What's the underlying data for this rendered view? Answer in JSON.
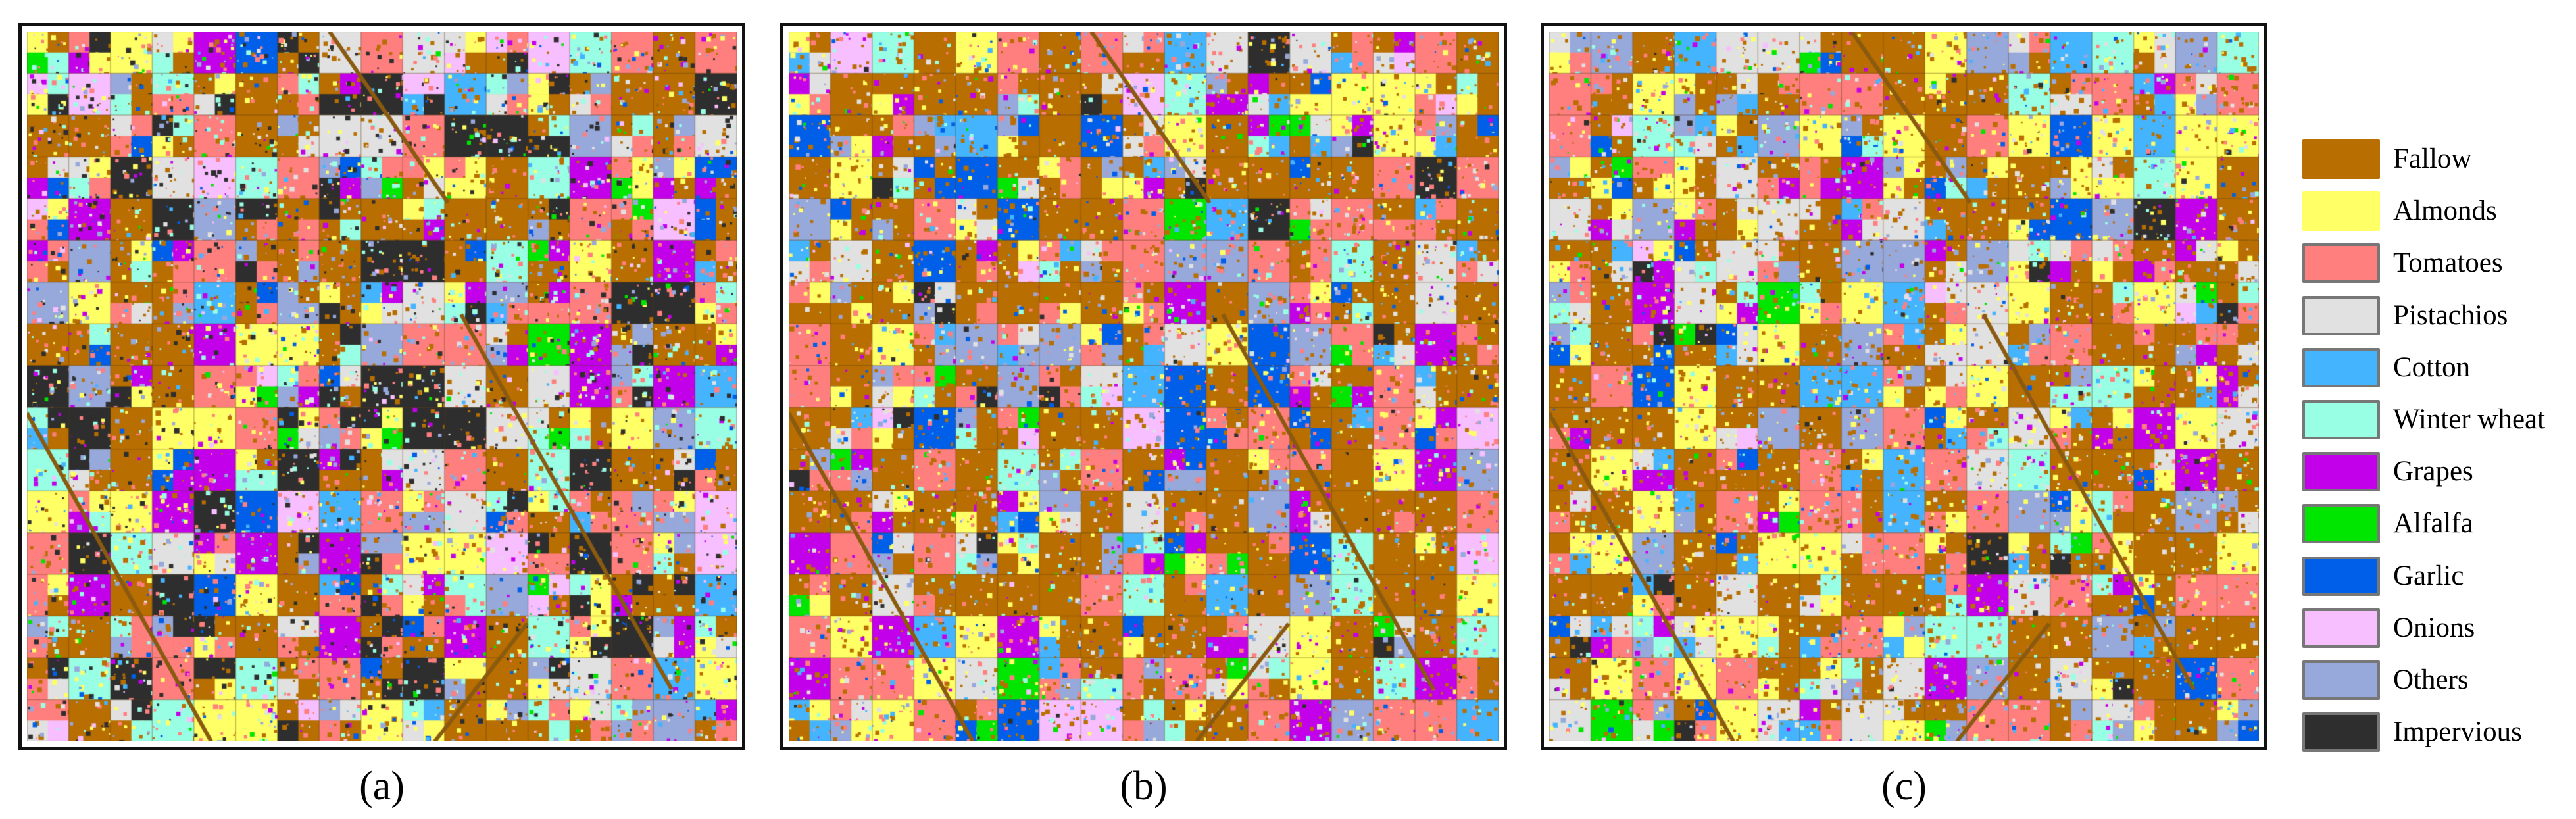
{
  "figure": {
    "panels": [
      {
        "id": "a",
        "caption": "(a)",
        "weights": {
          "Fallow": 22,
          "Almonds": 9,
          "Tomatoes": 15,
          "Pistachios": 6,
          "Cotton": 3,
          "Winter wheat": 8,
          "Grapes": 6,
          "Alfalfa": 2,
          "Garlic": 4,
          "Onions": 3,
          "Others": 8,
          "Impervious": 14
        },
        "seed": 11
      },
      {
        "id": "b",
        "caption": "(b)",
        "weights": {
          "Fallow": 34,
          "Almonds": 10,
          "Tomatoes": 15,
          "Pistachios": 8,
          "Cotton": 4,
          "Winter wheat": 5,
          "Grapes": 6,
          "Alfalfa": 2,
          "Garlic": 5,
          "Onions": 2,
          "Others": 7,
          "Impervious": 2
        },
        "seed": 23
      },
      {
        "id": "c",
        "caption": "(c)",
        "weights": {
          "Fallow": 33,
          "Almonds": 11,
          "Tomatoes": 14,
          "Pistachios": 9,
          "Cotton": 6,
          "Winter wheat": 6,
          "Grapes": 6,
          "Alfalfa": 2,
          "Garlic": 3,
          "Onions": 1,
          "Others": 7,
          "Impervious": 2
        },
        "seed": 37
      }
    ]
  },
  "legend": {
    "items": [
      {
        "label": "Fallow",
        "color": "#B86E00",
        "bordered": false
      },
      {
        "label": "Almonds",
        "color": "#FFFF66",
        "bordered": false
      },
      {
        "label": "Tomatoes",
        "color": "#FF7F7F",
        "bordered": true
      },
      {
        "label": "Pistachios",
        "color": "#E1E1E1",
        "bordered": true
      },
      {
        "label": "Cotton",
        "color": "#45B4FF",
        "bordered": true
      },
      {
        "label": "Winter wheat",
        "color": "#99FFE4",
        "bordered": true
      },
      {
        "label": "Grapes",
        "color": "#C300EA",
        "bordered": true
      },
      {
        "label": "Alfalfa",
        "color": "#00E600",
        "bordered": true
      },
      {
        "label": "Garlic",
        "color": "#005FE8",
        "bordered": true
      },
      {
        "label": "Onions",
        "color": "#F7BFFF",
        "bordered": true
      },
      {
        "label": "Others",
        "color": "#97A8DB",
        "bordered": true
      },
      {
        "label": "Impervious",
        "color": "#2E2E2E",
        "bordered": true
      }
    ]
  }
}
